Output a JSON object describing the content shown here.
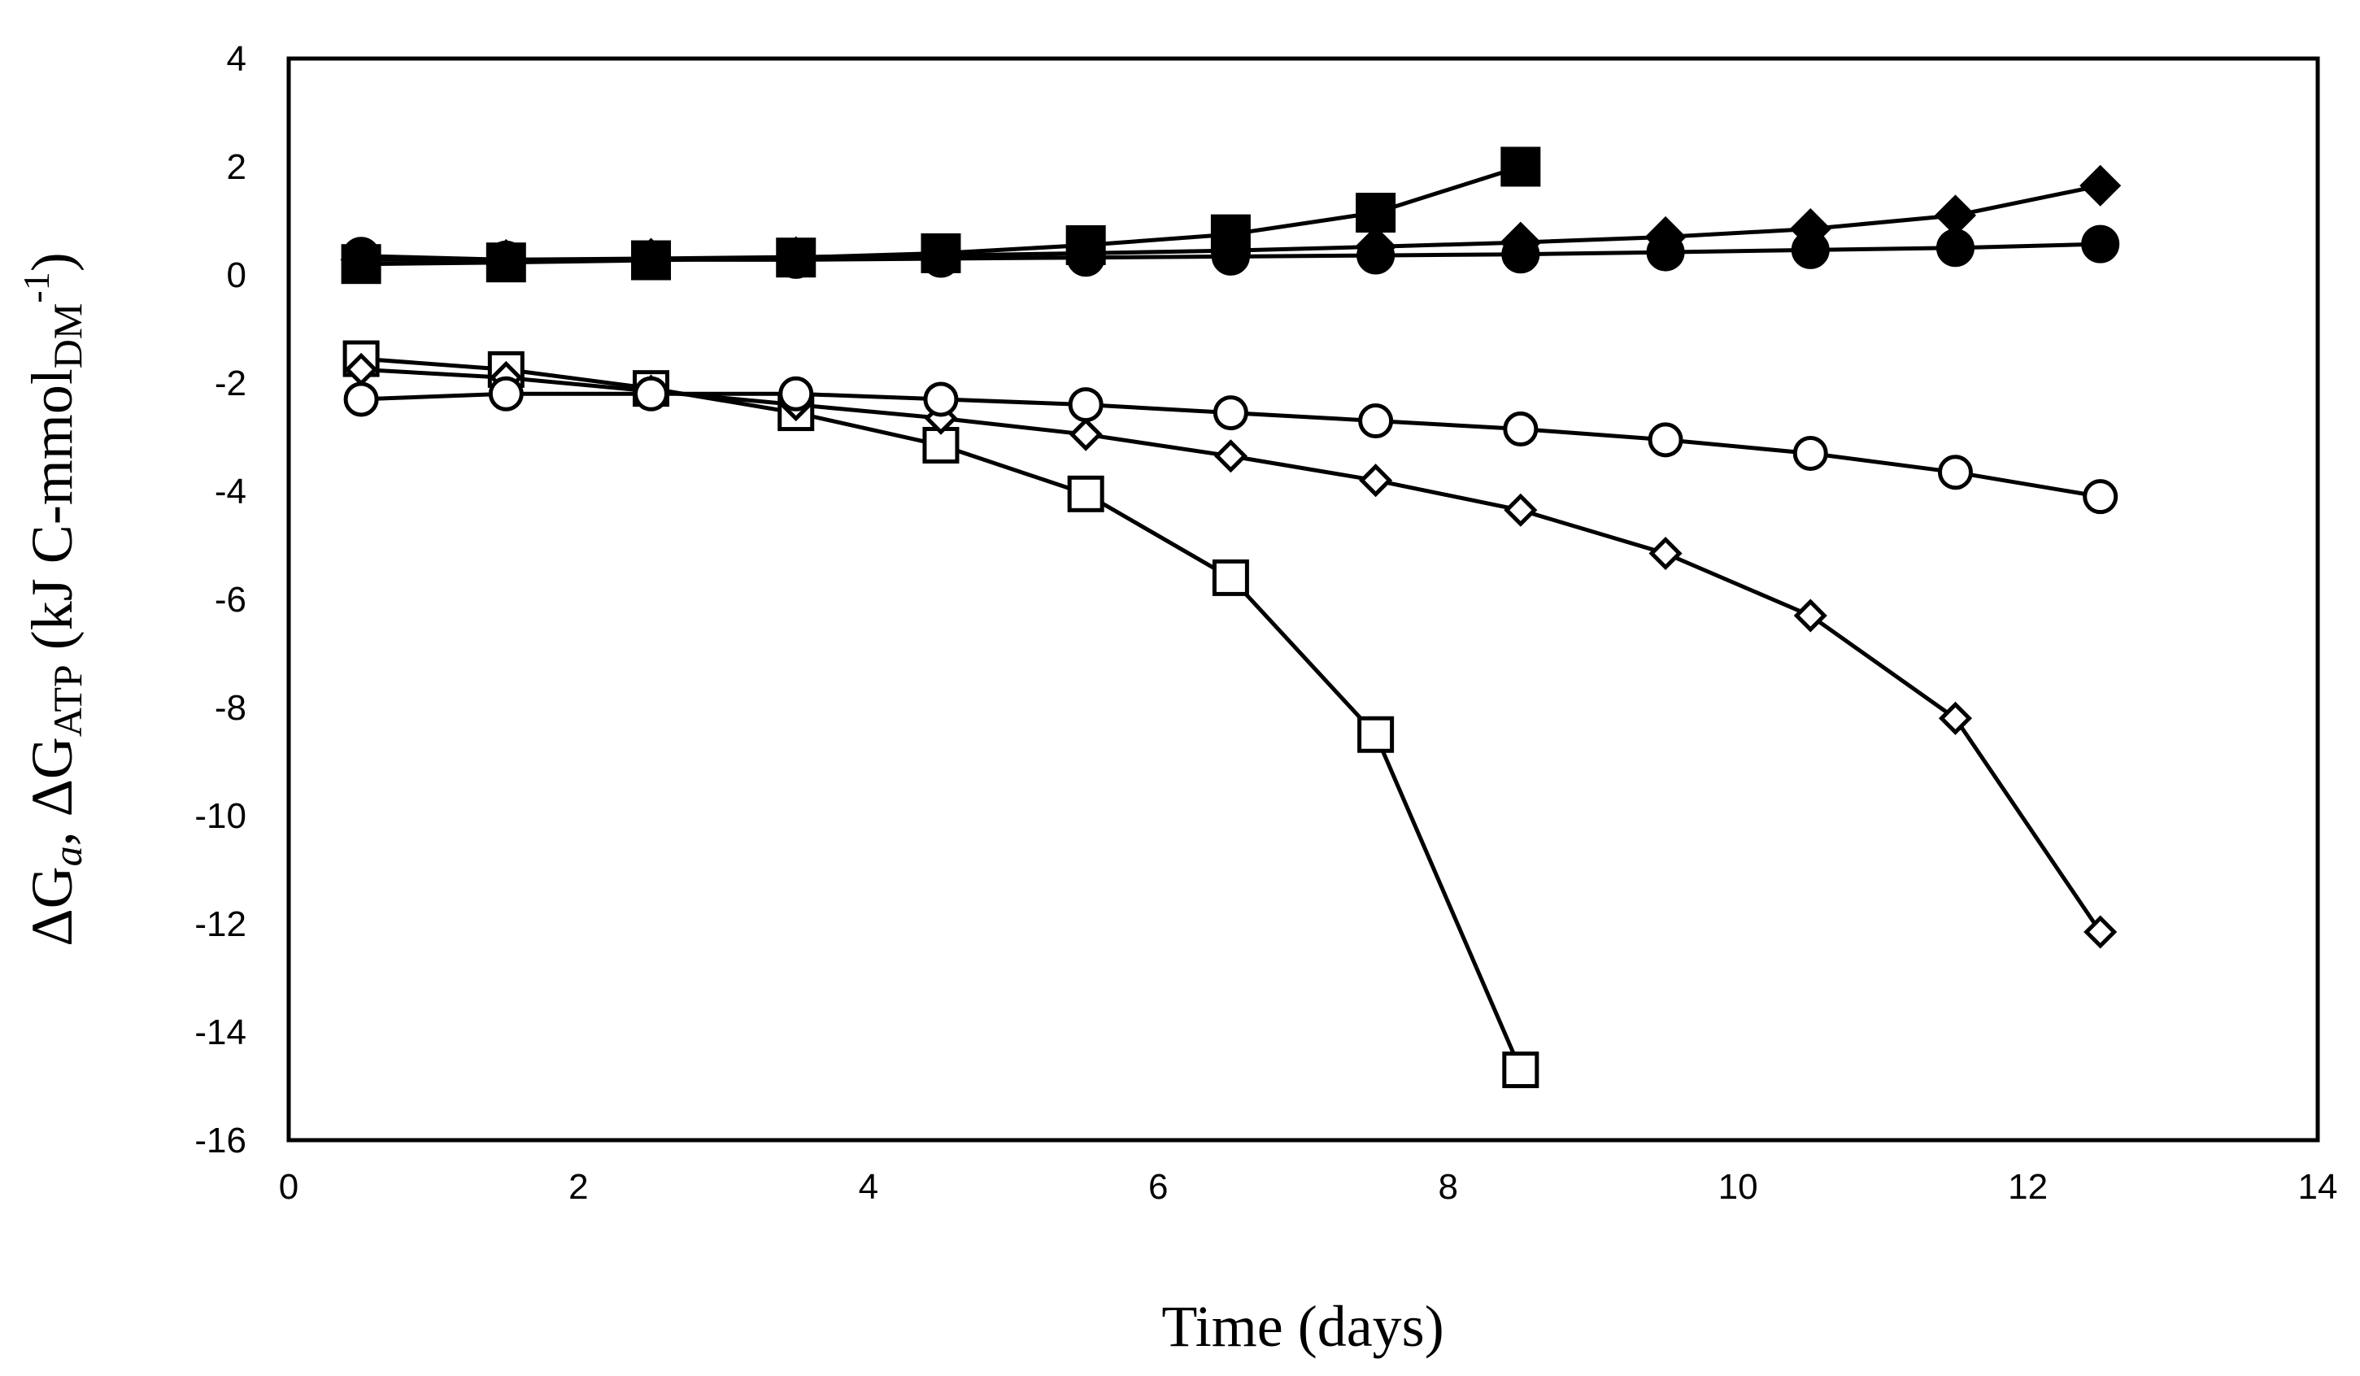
{
  "chart_data": {
    "type": "line",
    "title": "",
    "xlabel": "Time (days)",
    "ylabel_parts": {
      "delta_1": "ΔG",
      "sub_1": "a",
      "sep": ", ",
      "delta_2": "ΔG",
      "sub_2": "ATP",
      "unit_open": " (kJ C-mmol",
      "sub_3": "DM",
      "sup_1": "-1",
      "unit_close": ")"
    },
    "xlim": [
      0,
      14
    ],
    "ylim": [
      -16,
      4
    ],
    "xticks": [
      0,
      2,
      4,
      6,
      8,
      10,
      12,
      14
    ],
    "yticks": [
      4,
      2,
      0,
      -2,
      -4,
      -6,
      -8,
      -10,
      -12,
      -14,
      -16
    ],
    "grid": false,
    "series": [
      {
        "name": "filled-square",
        "marker": "square",
        "filled": true,
        "x": [
          0.5,
          1.5,
          2.5,
          3.5,
          4.5,
          5.5,
          6.5,
          7.5,
          8.5
        ],
        "y": [
          0.2,
          0.23,
          0.27,
          0.32,
          0.4,
          0.55,
          0.75,
          1.15,
          2.0
        ]
      },
      {
        "name": "filled-diamond",
        "marker": "diamond",
        "filled": true,
        "x": [
          0.5,
          1.5,
          2.5,
          3.5,
          4.5,
          5.5,
          6.5,
          7.5,
          8.5,
          9.5,
          10.5,
          11.5,
          12.5
        ],
        "y": [
          0.28,
          0.28,
          0.3,
          0.33,
          0.36,
          0.4,
          0.45,
          0.52,
          0.6,
          0.7,
          0.85,
          1.1,
          1.65
        ]
      },
      {
        "name": "filled-circle",
        "marker": "circle",
        "filled": true,
        "x": [
          0.5,
          1.5,
          2.5,
          3.5,
          4.5,
          5.5,
          6.5,
          7.5,
          8.5,
          9.5,
          10.5,
          11.5,
          12.5
        ],
        "y": [
          0.35,
          0.28,
          0.28,
          0.28,
          0.3,
          0.32,
          0.34,
          0.36,
          0.38,
          0.42,
          0.46,
          0.5,
          0.57
        ]
      },
      {
        "name": "open-square",
        "marker": "square",
        "filled": false,
        "x": [
          0.5,
          1.5,
          2.5,
          3.5,
          4.5,
          5.5,
          6.5,
          7.5,
          8.5
        ],
        "y": [
          -1.55,
          -1.75,
          -2.1,
          -2.55,
          -3.15,
          -4.05,
          -5.6,
          -8.5,
          -14.7
        ]
      },
      {
        "name": "open-diamond",
        "marker": "diamond",
        "filled": false,
        "x": [
          0.5,
          1.5,
          2.5,
          3.5,
          4.5,
          5.5,
          6.5,
          7.5,
          8.5,
          9.5,
          10.5,
          11.5,
          12.5
        ],
        "y": [
          -1.75,
          -1.9,
          -2.15,
          -2.4,
          -2.65,
          -2.95,
          -3.35,
          -3.8,
          -4.35,
          -5.15,
          -6.3,
          -8.2,
          -12.15
        ]
      },
      {
        "name": "open-circle",
        "marker": "circle",
        "filled": false,
        "x": [
          0.5,
          1.5,
          2.5,
          3.5,
          4.5,
          5.5,
          6.5,
          7.5,
          8.5,
          9.5,
          10.5,
          11.5,
          12.5
        ],
        "y": [
          -2.3,
          -2.2,
          -2.2,
          -2.2,
          -2.3,
          -2.4,
          -2.55,
          -2.7,
          -2.85,
          -3.05,
          -3.3,
          -3.65,
          -4.1
        ]
      }
    ]
  }
}
